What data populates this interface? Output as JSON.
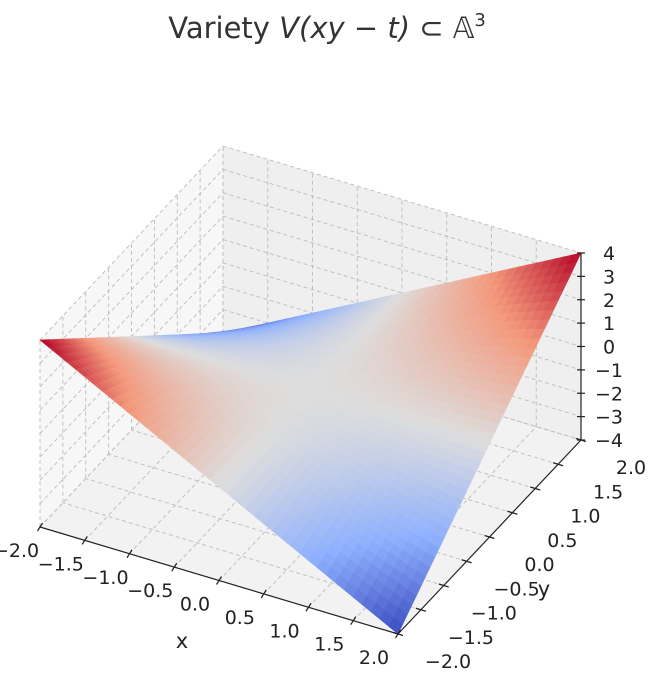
{
  "chart_data": {
    "type": "surface3d",
    "title": "Variety V(xy − t) ⊂ 𝔸³",
    "title_parts": {
      "prefix": "Variety ",
      "italic": "V(xy − t)",
      "mid": " ⊂ ",
      "space": "𝔸",
      "exp": "3"
    },
    "equation": "t = x*y",
    "xlabel": "x",
    "ylabel": "y",
    "zlabel": "",
    "xlim": [
      -2.0,
      2.0
    ],
    "ylim": [
      -2.0,
      2.0
    ],
    "zlim": [
      -4,
      4
    ],
    "x_ticks": [
      "−2.0",
      "−1.5",
      "−1.0",
      "−0.5",
      "0.0",
      "0.5",
      "1.0",
      "1.5",
      "2.0"
    ],
    "y_ticks": [
      "−2.0",
      "−1.5",
      "−1.0",
      "−0.5",
      "0.0",
      "0.5",
      "1.0",
      "1.5",
      "2.0"
    ],
    "z_ticks": [
      "−4",
      "−3",
      "−2",
      "−1",
      "0",
      "1",
      "2",
      "3",
      "4"
    ],
    "x_tick_values": [
      -2.0,
      -1.5,
      -1.0,
      -0.5,
      0.0,
      0.5,
      1.0,
      1.5,
      2.0
    ],
    "y_tick_values": [
      -2.0,
      -1.5,
      -1.0,
      -0.5,
      0.0,
      0.5,
      1.0,
      1.5,
      2.0
    ],
    "z_tick_values": [
      -4,
      -3,
      -2,
      -1,
      0,
      1,
      2,
      3,
      4
    ],
    "corners": [
      {
        "x": -2,
        "y": -2,
        "z": 4
      },
      {
        "x": 2,
        "y": -2,
        "z": -4
      },
      {
        "x": 2,
        "y": 2,
        "z": 4
      },
      {
        "x": -2,
        "y": 2,
        "z": -4
      }
    ],
    "colormap": "coolwarm",
    "colors": {
      "low": "#3b4cc0",
      "mid": "#dddddd",
      "high": "#b40426"
    },
    "grid": true
  }
}
